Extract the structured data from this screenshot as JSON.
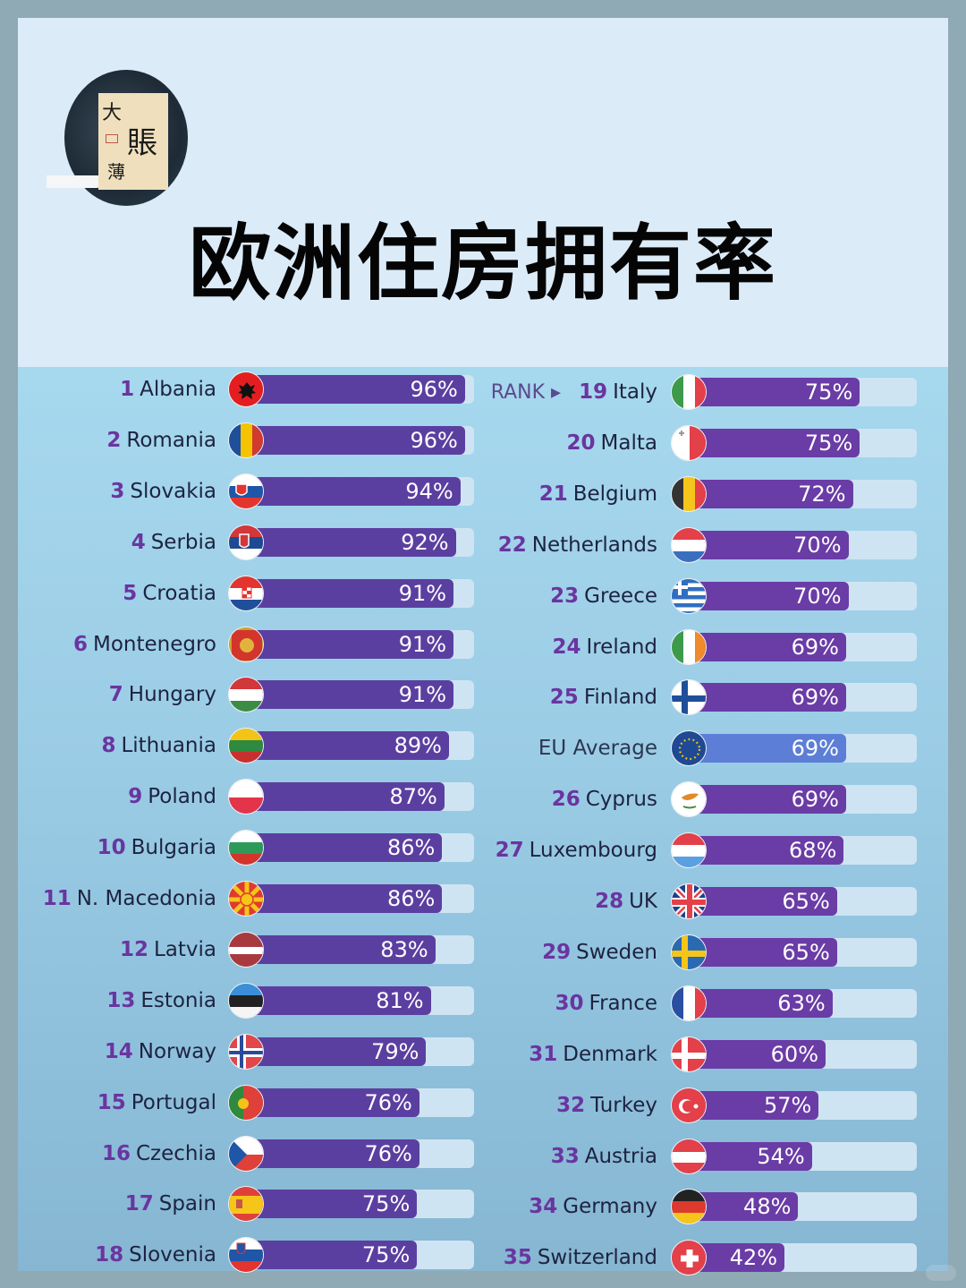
{
  "header": {
    "title": "欧洲住房拥有率",
    "logo": {
      "chars": [
        "大",
        "賬",
        "薄"
      ],
      "icon": "ink-circle-logo"
    }
  },
  "chart": {
    "rank_header": "RANK ▸",
    "colors": {
      "bar": "#5b3fa0",
      "bar_right": "#6a3ca6",
      "eu_bar": "#5c7ed6",
      "track": "#cfe4f2",
      "rank": "#6a35a0",
      "background": "#9ccde6"
    }
  },
  "chart_data": {
    "type": "bar",
    "orientation": "horizontal",
    "title": "欧洲住房拥有率",
    "xlabel": "",
    "ylabel": "",
    "xlim": [
      0,
      100
    ],
    "unit": "%",
    "categories": [
      "Albania",
      "Romania",
      "Slovakia",
      "Serbia",
      "Croatia",
      "Montenegro",
      "Hungary",
      "Lithuania",
      "Poland",
      "Bulgaria",
      "N. Macedonia",
      "Latvia",
      "Estonia",
      "Norway",
      "Portugal",
      "Czechia",
      "Spain",
      "Slovenia",
      "Italy",
      "Malta",
      "Belgium",
      "Netherlands",
      "Greece",
      "Ireland",
      "Finland",
      "EU Average",
      "Cyprus",
      "Luxembourg",
      "UK",
      "Sweden",
      "France",
      "Denmark",
      "Turkey",
      "Austria",
      "Germany",
      "Switzerland"
    ],
    "values": [
      96,
      96,
      94,
      92,
      91,
      91,
      91,
      89,
      87,
      86,
      86,
      83,
      81,
      79,
      76,
      76,
      75,
      75,
      75,
      75,
      72,
      70,
      70,
      69,
      69,
      69,
      69,
      68,
      65,
      65,
      63,
      60,
      57,
      54,
      48,
      42
    ]
  },
  "left": [
    {
      "rank": "1",
      "name": "Albania",
      "value": 96,
      "label": "96%",
      "flag": "albania"
    },
    {
      "rank": "2",
      "name": "Romania",
      "value": 96,
      "label": "96%",
      "flag": "romania"
    },
    {
      "rank": "3",
      "name": "Slovakia",
      "value": 94,
      "label": "94%",
      "flag": "slovakia"
    },
    {
      "rank": "4",
      "name": "Serbia",
      "value": 92,
      "label": "92%",
      "flag": "serbia"
    },
    {
      "rank": "5",
      "name": "Croatia",
      "value": 91,
      "label": "91%",
      "flag": "croatia"
    },
    {
      "rank": "6",
      "name": "Montenegro",
      "value": 91,
      "label": "91%",
      "flag": "montenegro"
    },
    {
      "rank": "7",
      "name": "Hungary",
      "value": 91,
      "label": "91%",
      "flag": "hungary"
    },
    {
      "rank": "8",
      "name": "Lithuania",
      "value": 89,
      "label": "89%",
      "flag": "lithuania"
    },
    {
      "rank": "9",
      "name": "Poland",
      "value": 87,
      "label": "87%",
      "flag": "poland"
    },
    {
      "rank": "10",
      "name": "Bulgaria",
      "value": 86,
      "label": "86%",
      "flag": "bulgaria"
    },
    {
      "rank": "11",
      "name": "N. Macedonia",
      "value": 86,
      "label": "86%",
      "flag": "macedonia"
    },
    {
      "rank": "12",
      "name": "Latvia",
      "value": 83,
      "label": "83%",
      "flag": "latvia"
    },
    {
      "rank": "13",
      "name": "Estonia",
      "value": 81,
      "label": "81%",
      "flag": "estonia"
    },
    {
      "rank": "14",
      "name": "Norway",
      "value": 79,
      "label": "79%",
      "flag": "norway"
    },
    {
      "rank": "15",
      "name": "Portugal",
      "value": 76,
      "label": "76%",
      "flag": "portugal"
    },
    {
      "rank": "16",
      "name": "Czechia",
      "value": 76,
      "label": "76%",
      "flag": "czechia"
    },
    {
      "rank": "17",
      "name": "Spain",
      "value": 75,
      "label": "75%",
      "flag": "spain"
    },
    {
      "rank": "18",
      "name": "Slovenia",
      "value": 75,
      "label": "75%",
      "flag": "slovenia"
    }
  ],
  "right": [
    {
      "rank": "19",
      "name": "Italy",
      "value": 75,
      "label": "75%",
      "flag": "italy"
    },
    {
      "rank": "20",
      "name": "Malta",
      "value": 75,
      "label": "75%",
      "flag": "malta"
    },
    {
      "rank": "21",
      "name": "Belgium",
      "value": 72,
      "label": "72%",
      "flag": "belgium"
    },
    {
      "rank": "22",
      "name": "Netherlands",
      "value": 70,
      "label": "70%",
      "flag": "netherlands"
    },
    {
      "rank": "23",
      "name": "Greece",
      "value": 70,
      "label": "70%",
      "flag": "greece"
    },
    {
      "rank": "24",
      "name": "Ireland",
      "value": 69,
      "label": "69%",
      "flag": "ireland"
    },
    {
      "rank": "25",
      "name": "Finland",
      "value": 69,
      "label": "69%",
      "flag": "finland"
    },
    {
      "rank": "",
      "name": "EU Average",
      "value": 69,
      "label": "69%",
      "flag": "eu",
      "eu": true
    },
    {
      "rank": "26",
      "name": "Cyprus",
      "value": 69,
      "label": "69%",
      "flag": "cyprus"
    },
    {
      "rank": "27",
      "name": "Luxembourg",
      "value": 68,
      "label": "68%",
      "flag": "luxembourg"
    },
    {
      "rank": "28",
      "name": "UK",
      "value": 65,
      "label": "65%",
      "flag": "uk"
    },
    {
      "rank": "29",
      "name": "Sweden",
      "value": 65,
      "label": "65%",
      "flag": "sweden"
    },
    {
      "rank": "30",
      "name": "France",
      "value": 63,
      "label": "63%",
      "flag": "france"
    },
    {
      "rank": "31",
      "name": "Denmark",
      "value": 60,
      "label": "60%",
      "flag": "denmark"
    },
    {
      "rank": "32",
      "name": "Turkey",
      "value": 57,
      "label": "57%",
      "flag": "turkey"
    },
    {
      "rank": "33",
      "name": "Austria",
      "value": 54,
      "label": "54%",
      "flag": "austria"
    },
    {
      "rank": "34",
      "name": "Germany",
      "value": 48,
      "label": "48%",
      "flag": "germany"
    },
    {
      "rank": "35",
      "name": "Switzerland",
      "value": 42,
      "label": "42%",
      "flag": "switzerland"
    }
  ]
}
